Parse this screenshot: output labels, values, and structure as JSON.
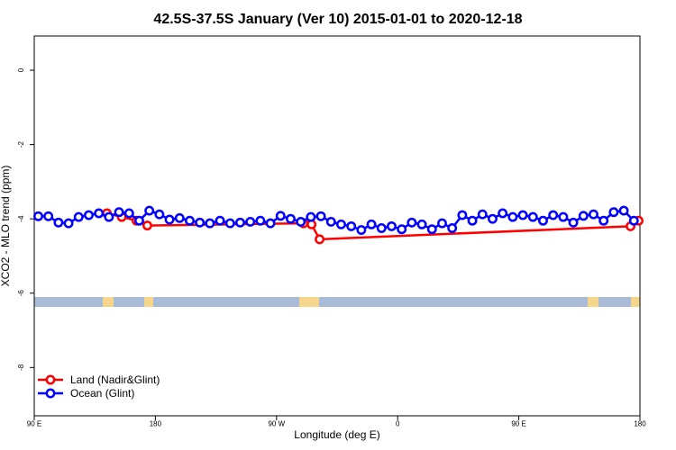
{
  "chart_data": {
    "type": "line",
    "title": "42.5S-37.5S January (Ver 10)   2015-01-01 to 2020-12-18",
    "x_label": "Longitude (deg E)",
    "y_label": "XCO2 - MLO trend (ppm)",
    "xlim": [
      90,
      540
    ],
    "ylim": [
      -9.3,
      0.92
    ],
    "xticks": [
      {
        "value": 90,
        "label": "90 E"
      },
      180,
      {
        "value": 270,
        "label": "90 W"
      },
      {
        "value": 360,
        "label": "0"
      },
      {
        "value": 450,
        "label": "90 E"
      },
      {
        "value": 540,
        "label": "180"
      }
    ],
    "yticks": [
      0,
      -2,
      -4,
      -6,
      -8
    ],
    "legend": "bottom-left",
    "series": [
      {
        "name": "Land (Nadir&Glint)",
        "color": "#ff0000",
        "x": [
          144,
          155,
          166,
          174,
          290,
          296,
          302,
          533,
          539
        ],
        "values": [
          -3.85,
          -3.95,
          -4.05,
          -4.18,
          -4.12,
          -4.15,
          -4.55,
          -4.2,
          -4.05
        ]
      },
      {
        "name": "Ocean (Glint)",
        "color": "#0000ff",
        "x": [
          93,
          100.5,
          108,
          115.5,
          123,
          130.5,
          138,
          145.5,
          153,
          160.5,
          168,
          175.5,
          183,
          190.5,
          198,
          205.5,
          213,
          220.5,
          228,
          235.5,
          243,
          250.5,
          258,
          265.5,
          273,
          280.5,
          288,
          295.5,
          303,
          310.5,
          318,
          325.5,
          333,
          340.5,
          348,
          355.5,
          363,
          370.5,
          378,
          385.5,
          393,
          400.5,
          408,
          415.5,
          423,
          430.5,
          438,
          445.5,
          453,
          460.5,
          468,
          475.5,
          483,
          490.5,
          498,
          505.5,
          513,
          520.5,
          528,
          535.5
        ],
        "values": [
          -3.93,
          -3.93,
          -4.1,
          -4.12,
          -3.95,
          -3.9,
          -3.85,
          -3.95,
          -3.82,
          -3.85,
          -4.05,
          -3.78,
          -3.88,
          -4.02,
          -3.98,
          -4.05,
          -4.1,
          -4.12,
          -4.05,
          -4.12,
          -4.1,
          -4.08,
          -4.05,
          -4.12,
          -3.92,
          -4.0,
          -4.08,
          -3.95,
          -3.93,
          -4.08,
          -4.15,
          -4.2,
          -4.3,
          -4.15,
          -4.25,
          -4.2,
          -4.28,
          -4.1,
          -4.15,
          -4.28,
          -4.12,
          -4.25,
          -3.9,
          -4.05,
          -3.88,
          -4.0,
          -3.85,
          -3.95,
          -3.9,
          -3.95,
          -4.05,
          -3.9,
          -3.95,
          -4.1,
          -3.92,
          -3.88,
          -4.05,
          -3.82,
          -3.78,
          -4.05
        ]
      }
    ]
  }
}
